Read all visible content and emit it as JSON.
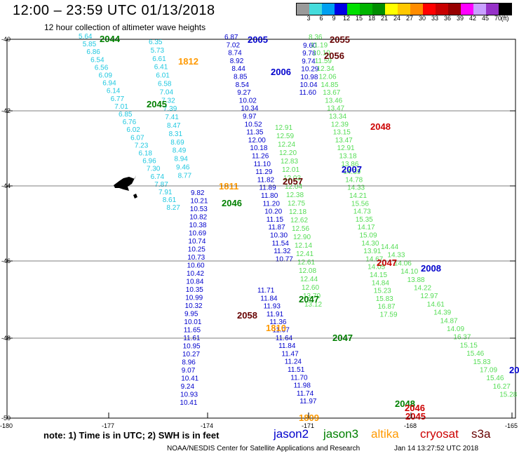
{
  "header": {
    "title": "12:00 – 23:59 UTC 01/13/2018",
    "subtitle": "12 hour collection of altimeter wave heights"
  },
  "colorbar": {
    "labels": [
      "3",
      "6",
      "9",
      "12",
      "15",
      "18",
      "21",
      "24",
      "27",
      "30",
      "33",
      "36",
      "39",
      "42",
      "45",
      "70",
      "(ft)"
    ],
    "colors": [
      "#9a9a9a",
      "#45dcdc",
      "#00a0f0",
      "#0000e6",
      "#00e000",
      "#00b400",
      "#008c00",
      "#ffff00",
      "#ffc800",
      "#ff8c00",
      "#ff0000",
      "#c80000",
      "#960000",
      "#ff00ff",
      "#c8a0ff",
      "#9632c8",
      "#000000"
    ]
  },
  "colors": {
    "jason2": "#0000cc",
    "jason3": "#008000",
    "altika": "#ff9900",
    "cryosat": "#cc0000",
    "s3a": "#660000",
    "cyan": "#20c8e0",
    "lightgreen": "#55dd55"
  },
  "axes": {
    "lat_labels": [
      "-40",
      "-42",
      "-44",
      "-46",
      "-48",
      "-50"
    ],
    "lon_labels": [
      "-180",
      "-177",
      "-174",
      "-171",
      "-168",
      "-165"
    ]
  },
  "track_labels": [
    {
      "text": "2044",
      "color": "jason3"
    },
    {
      "text": "2005",
      "color": "jason2"
    },
    {
      "text": "2055",
      "color": "s3a"
    },
    {
      "text": "1812",
      "color": "altika"
    },
    {
      "text": "2056",
      "color": "s3a"
    },
    {
      "text": "2006",
      "color": "jason2"
    },
    {
      "text": "2045",
      "color": "jason3"
    },
    {
      "text": "2048",
      "color": "cryosat"
    },
    {
      "text": "2007",
      "color": "jason2"
    },
    {
      "text": "1811",
      "color": "altika"
    },
    {
      "text": "2057",
      "color": "s3a"
    },
    {
      "text": "2046",
      "color": "jason3"
    },
    {
      "text": "2047",
      "color": "cryosat"
    },
    {
      "text": "2008",
      "color": "jason2"
    },
    {
      "text": "2047",
      "color": "jason3"
    },
    {
      "text": "2058",
      "color": "s3a"
    },
    {
      "text": "1810",
      "color": "altika"
    },
    {
      "text": "2047",
      "color": "jason3"
    },
    {
      "text": "2048",
      "color": "jason3"
    },
    {
      "text": "2046",
      "color": "cryosat"
    },
    {
      "text": "2045",
      "color": "cryosat"
    },
    {
      "text": "1809",
      "color": "altika"
    },
    {
      "text": "20",
      "color": "jason2"
    }
  ],
  "tracks": [
    {
      "name": "cyan-west",
      "color": "cyan",
      "values": [
        "5.64",
        "5.85",
        "6.86",
        "6.54",
        "6.56",
        "6.09",
        "6.94",
        "6.14",
        "6.77",
        "7.01",
        "6.85",
        "6.76",
        "6.02",
        "6.07",
        "7.23",
        "6.18",
        "6.96",
        "7.30",
        "6.74",
        "7.87",
        "7.91",
        "8.61",
        "8.27"
      ]
    },
    {
      "name": "cyan-mid",
      "color": "cyan",
      "values": [
        "6.35",
        "5.73",
        "6.61",
        "6.41",
        "6.01",
        "6.58",
        "7.04",
        "7.32",
        "7.39",
        "7.41",
        "8.47",
        "8.31",
        "8.69",
        "8.49",
        "8.94",
        "9.46",
        "8.77"
      ]
    },
    {
      "name": "blue-west",
      "color": "jason2",
      "values": [
        "9.82",
        "10.21",
        "10.53",
        "10.82",
        "10.38",
        "10.69",
        "10.74",
        "10.25",
        "10.73",
        "10.60",
        "10.42",
        "10.84",
        "10.35",
        "10.99",
        "10.32",
        "9.95",
        "10.01",
        "11.65",
        "11.61",
        "10.95",
        "10.27",
        "8.96",
        "9.07",
        "10.41",
        "9.24",
        "10.93",
        "10.41"
      ]
    },
    {
      "name": "blue-2005",
      "color": "jason2",
      "values": [
        "6.87",
        "7.02",
        "8.74",
        "8.92",
        "8.44",
        "8.85",
        "8.54",
        "9.27",
        "10.02",
        "10.34",
        "9.97",
        "10.52",
        "11.35",
        "12.00",
        "10.18",
        "11.26",
        "11.10",
        "11.29",
        "11.82",
        "11.89",
        "11.80",
        "11.20",
        "10.20",
        "11.15",
        "11.87",
        "10.30",
        "11.54",
        "11.32",
        "10.77"
      ]
    },
    {
      "name": "blue-2006",
      "color": "jason2",
      "values": [
        "9.60",
        "9.78",
        "9.74",
        "10.29",
        "10.98",
        "10.04",
        "11.60"
      ]
    },
    {
      "name": "blue-lower",
      "color": "jason2",
      "values": [
        "11.71",
        "11.84",
        "11.93",
        "11.91",
        "11.36",
        "11.07",
        "11.64",
        "11.84",
        "11.47",
        "11.24",
        "11.51",
        "11.70",
        "11.98",
        "11.74",
        "11.97"
      ]
    },
    {
      "name": "lime-mid",
      "color": "lightgreen",
      "values": [
        "12.91",
        "12.59",
        "12.24",
        "12.20",
        "12.83",
        "12.01",
        "12.03",
        "12.04",
        "12.38",
        "12.75",
        "12.18",
        "12.62",
        "12.56",
        "12.90",
        "12.14",
        "12.41",
        "12.61",
        "12.08",
        "12.44",
        "12.60",
        "13.70",
        "13.12"
      ]
    },
    {
      "name": "lime-east-a",
      "color": "lightgreen",
      "values": [
        "8.36",
        "11.19",
        "10.10",
        "11.59",
        "12.34",
        "12.06",
        "14.85",
        "13.67",
        "13.46",
        "13.47",
        "13.34",
        "12.39",
        "13.15",
        "13.47",
        "12.91",
        "13.18",
        "13.86",
        "14.39",
        "14.78",
        "14.33",
        "14.21",
        "15.56",
        "14.73",
        "15.35",
        "14.17",
        "15.09",
        "14.30",
        "13.91",
        "14.67",
        "14.05",
        "14.15",
        "14.84",
        "15.23",
        "15.83",
        "16.87",
        "17.59"
      ]
    },
    {
      "name": "lime-east-b",
      "color": "lightgreen",
      "values": [
        "14.44",
        "14.33",
        "14.06",
        "14.10",
        "13.88",
        "14.22",
        "12.97",
        "14.61",
        "14.39",
        "14.87",
        "14.09",
        "16.37",
        "15.15",
        "15.46",
        "15.83",
        "17.09",
        "15.46",
        "16.27",
        "15.28"
      ]
    }
  ],
  "footer": {
    "note": "note:  1) Time is in UTC;  2) SWH is in feet",
    "legend": [
      {
        "label": "jason2",
        "color": "jason2"
      },
      {
        "label": "jason3",
        "color": "jason3"
      },
      {
        "label": "altika",
        "color": "altika"
      },
      {
        "label": "cryosat",
        "color": "cryosat"
      },
      {
        "label": "s3a",
        "color": "s3a"
      }
    ],
    "credit": "NOAA/NESDIS Center for Satellite Applications and Research",
    "timestamp": "Jan 14 13:27:52 UTC 2018"
  }
}
